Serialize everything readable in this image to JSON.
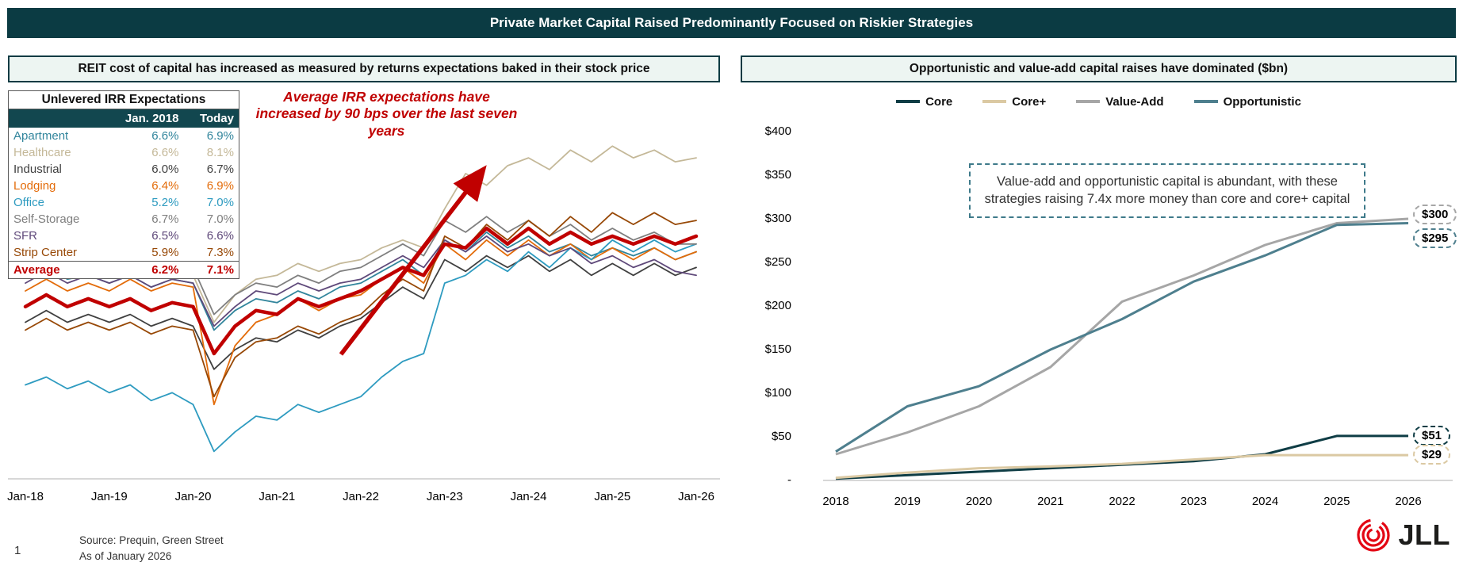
{
  "slide_title": "Private Market Capital Raised Predominantly Focused on Riskier Strategies",
  "left_panel": {
    "header": "REIT cost of capital has increased as measured by returns expectations baked in their stock price",
    "annotation": "Average IRR expectations have increased by 90 bps over the last seven years",
    "table": {
      "title": "Unlevered IRR Expectations",
      "columns": [
        "",
        "Jan. 2018",
        "Today"
      ],
      "rows": [
        {
          "label": "Apartment",
          "jan2018": "6.6%",
          "today": "6.9%",
          "color": "#31859C"
        },
        {
          "label": "Healthcare",
          "jan2018": "6.6%",
          "today": "8.1%",
          "color": "#C4B898"
        },
        {
          "label": "Industrial",
          "jan2018": "6.0%",
          "today": "6.7%",
          "color": "#404040"
        },
        {
          "label": "Lodging",
          "jan2018": "6.4%",
          "today": "6.9%",
          "color": "#E36C0A"
        },
        {
          "label": "Office",
          "jan2018": "5.2%",
          "today": "7.0%",
          "color": "#2E9BC0"
        },
        {
          "label": "Self-Storage",
          "jan2018": "6.7%",
          "today": "7.0%",
          "color": "#7F7F7F"
        },
        {
          "label": "SFR",
          "jan2018": "6.5%",
          "today": "6.6%",
          "color": "#5F497A"
        },
        {
          "label": "Strip Center",
          "jan2018": "5.9%",
          "today": "7.3%",
          "color": "#974806"
        },
        {
          "label": "Average",
          "jan2018": "6.2%",
          "today": "7.1%",
          "color": "#C00000",
          "bold": true
        }
      ]
    }
  },
  "right_panel": {
    "header": "Opportunistic and value-add capital raises have dominated ($bn)",
    "callout": "Value-add and opportunistic capital is abundant, with these strategies raising 7.4x more money than core and core+ capital"
  },
  "chart_data": [
    {
      "id": "reit-unlevered-irr-expectations",
      "type": "line",
      "title": "Unlevered IRR Expectations over time",
      "x_tick_labels": [
        "Jan-18",
        "Jan-19",
        "Jan-20",
        "Jan-21",
        "Jan-22",
        "Jan-23",
        "Jan-24",
        "Jan-25",
        "Jan-26"
      ],
      "x_frequency": "quarterly",
      "ylim": [
        4.0,
        8.8
      ],
      "grid": false,
      "y_axis_visible": false,
      "series": [
        {
          "name": "Apartment",
          "color": "#31859C",
          "values": [
            6.6,
            6.7,
            6.55,
            6.6,
            6.5,
            6.6,
            6.45,
            6.55,
            6.5,
            5.9,
            6.15,
            6.3,
            6.25,
            6.4,
            6.3,
            6.45,
            6.5,
            6.65,
            6.8,
            6.6,
            7.05,
            6.9,
            7.15,
            6.95,
            7.1,
            6.9,
            7.0,
            6.85,
            6.95,
            6.85,
            6.95,
            6.8,
            6.9
          ]
        },
        {
          "name": "Healthcare",
          "color": "#C4B898",
          "values": [
            6.6,
            6.75,
            6.6,
            6.7,
            6.65,
            6.75,
            6.6,
            6.7,
            6.6,
            6.0,
            6.35,
            6.55,
            6.6,
            6.75,
            6.65,
            6.75,
            6.8,
            6.95,
            7.05,
            6.95,
            7.45,
            7.9,
            7.75,
            8.0,
            8.1,
            7.95,
            8.2,
            8.05,
            8.25,
            8.1,
            8.2,
            8.05,
            8.1
          ]
        },
        {
          "name": "Industrial",
          "color": "#404040",
          "values": [
            6.0,
            6.15,
            6.0,
            6.1,
            6.0,
            6.1,
            5.95,
            6.05,
            5.95,
            5.4,
            5.65,
            5.8,
            5.75,
            5.9,
            5.8,
            5.95,
            6.05,
            6.25,
            6.45,
            6.3,
            6.8,
            6.65,
            6.85,
            6.7,
            6.85,
            6.65,
            6.8,
            6.6,
            6.75,
            6.6,
            6.75,
            6.6,
            6.7
          ]
        },
        {
          "name": "Lodging",
          "color": "#E36C0A",
          "values": [
            6.4,
            6.55,
            6.4,
            6.5,
            6.4,
            6.55,
            6.4,
            6.5,
            6.45,
            4.95,
            5.7,
            6.0,
            6.1,
            6.3,
            6.15,
            6.3,
            6.35,
            6.55,
            6.7,
            6.5,
            7.0,
            6.8,
            7.05,
            6.85,
            7.05,
            6.85,
            7.0,
            6.8,
            6.95,
            6.8,
            6.95,
            6.8,
            6.9
          ]
        },
        {
          "name": "Office",
          "color": "#2E9BC0",
          "values": [
            5.2,
            5.3,
            5.15,
            5.25,
            5.1,
            5.2,
            5.0,
            5.1,
            4.95,
            4.35,
            4.6,
            4.8,
            4.75,
            4.95,
            4.85,
            4.95,
            5.05,
            5.3,
            5.5,
            5.6,
            6.5,
            6.6,
            6.8,
            6.65,
            6.9,
            6.7,
            6.95,
            6.8,
            7.05,
            6.9,
            7.05,
            6.9,
            7.0
          ]
        },
        {
          "name": "Self-Storage",
          "color": "#7F7F7F",
          "values": [
            6.7,
            6.85,
            6.7,
            6.8,
            6.7,
            6.8,
            6.65,
            6.75,
            6.7,
            6.1,
            6.35,
            6.5,
            6.45,
            6.6,
            6.5,
            6.65,
            6.7,
            6.85,
            7.0,
            6.85,
            7.3,
            7.15,
            7.35,
            7.15,
            7.3,
            7.1,
            7.25,
            7.05,
            7.2,
            7.05,
            7.15,
            7.0,
            7.0
          ]
        },
        {
          "name": "SFR",
          "color": "#5F497A",
          "values": [
            6.5,
            6.65,
            6.5,
            6.6,
            6.5,
            6.6,
            6.45,
            6.55,
            6.5,
            5.95,
            6.2,
            6.4,
            6.35,
            6.5,
            6.4,
            6.5,
            6.55,
            6.7,
            6.85,
            6.7,
            7.05,
            6.9,
            7.1,
            6.9,
            7.0,
            6.85,
            6.95,
            6.75,
            6.85,
            6.7,
            6.8,
            6.65,
            6.6
          ]
        },
        {
          "name": "Strip Center",
          "color": "#974806",
          "values": [
            5.9,
            6.05,
            5.9,
            6.0,
            5.9,
            6.0,
            5.85,
            5.95,
            5.9,
            5.05,
            5.55,
            5.75,
            5.8,
            5.95,
            5.85,
            6.0,
            6.1,
            6.35,
            6.55,
            6.4,
            7.1,
            6.95,
            7.25,
            7.05,
            7.3,
            7.1,
            7.35,
            7.15,
            7.4,
            7.25,
            7.4,
            7.25,
            7.3
          ]
        },
        {
          "name": "Average",
          "color": "#C00000",
          "emphasis": true,
          "values": [
            6.2,
            6.35,
            6.2,
            6.3,
            6.2,
            6.3,
            6.15,
            6.25,
            6.2,
            5.6,
            5.95,
            6.15,
            6.1,
            6.3,
            6.2,
            6.3,
            6.4,
            6.55,
            6.7,
            6.6,
            7.0,
            6.95,
            7.2,
            7.0,
            7.2,
            7.0,
            7.15,
            7.0,
            7.1,
            7.0,
            7.1,
            7.0,
            7.1
          ]
        }
      ]
    },
    {
      "id": "capital-raised-by-strategy",
      "type": "line",
      "title": "Opportunistic and value-add capital raises have dominated ($bn)",
      "categories": [
        "2018",
        "2019",
        "2020",
        "2021",
        "2022",
        "2023",
        "2024",
        "2025",
        "2026"
      ],
      "ylabel_ticks": [
        "$400",
        "$350",
        "$300",
        "$250",
        "$200",
        "$150",
        "$100",
        "$50",
        "-"
      ],
      "ylim": [
        0,
        400
      ],
      "grid": false,
      "legend_position": "top",
      "series": [
        {
          "name": "Core",
          "color": "#0F3D45",
          "values": [
            2,
            6,
            10,
            14,
            18,
            22,
            30,
            51,
            51
          ],
          "end_label": "$51"
        },
        {
          "name": "Core+",
          "color": "#DBC9A3",
          "values": [
            3,
            9,
            14,
            16,
            19,
            24,
            29,
            29,
            29
          ],
          "end_label": "$29"
        },
        {
          "name": "Value-Add",
          "color": "#A6A6A6",
          "values": [
            30,
            55,
            85,
            130,
            205,
            235,
            270,
            295,
            300
          ],
          "end_label": "$300"
        },
        {
          "name": "Opportunistic",
          "color": "#4E7F8E",
          "values": [
            33,
            85,
            108,
            150,
            185,
            228,
            258,
            293,
            295
          ],
          "end_label": "$295"
        }
      ]
    }
  ],
  "footer": {
    "page_number": "1",
    "source_line1": "Source: Prequin, Green Street",
    "source_line2": "As of January 2026",
    "logo_text": "JLL"
  },
  "colors": {
    "banner_bg": "#0B3B43",
    "header_box_bg": "#EDF5F2",
    "accent_red": "#C00000",
    "logo_red": "#E30613"
  }
}
